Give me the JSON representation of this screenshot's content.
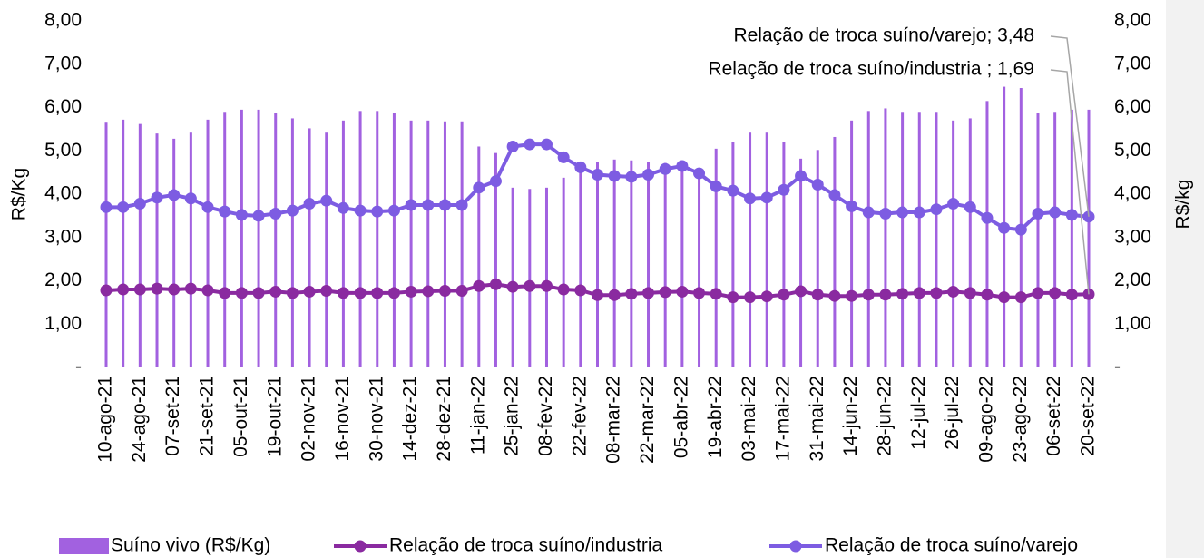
{
  "chart_data": {
    "type": "bar-line",
    "categories": [
      "10-ago-21",
      null,
      "24-ago-21",
      null,
      "07-set-21",
      null,
      "21-set-21",
      null,
      "05-out-21",
      null,
      "19-out-21",
      null,
      "02-nov-21",
      null,
      "16-nov-21",
      null,
      "30-nov-21",
      null,
      "14-dez-21",
      null,
      "28-dez-21",
      null,
      "11-jan-22",
      null,
      "25-jan-22",
      null,
      "08-fev-22",
      null,
      "22-fev-22",
      null,
      "08-mar-22",
      null,
      "22-mar-22",
      null,
      "05-abr-22",
      null,
      "19-abr-22",
      null,
      "03-mai-22",
      null,
      "17-mai-22",
      null,
      "31-mai-22",
      null,
      "14-jun-22",
      null,
      "28-jun-22",
      null,
      "12-jul-22",
      null,
      "26-jul-22",
      null,
      "09-ago-22",
      null,
      "23-ago-22",
      null,
      "06-set-22",
      null,
      "20-set-22"
    ],
    "series": [
      {
        "name": "Suíno vivo (R$/Kg)",
        "type": "bar",
        "color": "#a261e0",
        "values": [
          5.65,
          5.72,
          5.62,
          5.4,
          5.28,
          5.42,
          5.72,
          5.9,
          5.95,
          5.95,
          5.88,
          5.75,
          5.52,
          5.42,
          5.7,
          5.92,
          5.92,
          5.88,
          5.7,
          5.7,
          5.68,
          5.68,
          5.1,
          4.95,
          4.15,
          4.12,
          4.15,
          4.38,
          4.75,
          4.75,
          4.8,
          4.78,
          4.75,
          4.72,
          4.7,
          4.6,
          5.05,
          5.2,
          5.42,
          5.42,
          5.2,
          4.82,
          5.02,
          5.32,
          5.7,
          5.92,
          5.98,
          5.9,
          5.9,
          5.9,
          5.7,
          5.75,
          6.15,
          6.48,
          6.45,
          5.88,
          5.9,
          5.95,
          5.95
        ]
      },
      {
        "name": "Relação de troca suíno/industria",
        "type": "line",
        "axis": "y2",
        "color": "#8a2aa0",
        "values": [
          1.78,
          1.8,
          1.8,
          1.82,
          1.8,
          1.82,
          1.78,
          1.72,
          1.72,
          1.72,
          1.75,
          1.72,
          1.75,
          1.77,
          1.72,
          1.72,
          1.72,
          1.72,
          1.75,
          1.76,
          1.77,
          1.77,
          1.88,
          1.92,
          1.86,
          1.88,
          1.88,
          1.8,
          1.78,
          1.67,
          1.67,
          1.7,
          1.72,
          1.74,
          1.75,
          1.72,
          1.7,
          1.62,
          1.62,
          1.64,
          1.68,
          1.76,
          1.68,
          1.65,
          1.65,
          1.68,
          1.68,
          1.7,
          1.72,
          1.72,
          1.75,
          1.72,
          1.68,
          1.62,
          1.62,
          1.72,
          1.72,
          1.68,
          1.69
        ]
      },
      {
        "name": "Relação de troca suíno/varejo",
        "type": "line",
        "axis": "y2",
        "color": "#7d5ce2",
        "values": [
          3.7,
          3.7,
          3.78,
          3.92,
          3.98,
          3.9,
          3.7,
          3.6,
          3.52,
          3.5,
          3.55,
          3.62,
          3.78,
          3.85,
          3.68,
          3.62,
          3.6,
          3.62,
          3.75,
          3.75,
          3.75,
          3.75,
          4.15,
          4.3,
          5.1,
          5.15,
          5.15,
          4.85,
          4.62,
          4.45,
          4.42,
          4.4,
          4.45,
          4.58,
          4.65,
          4.48,
          4.18,
          4.08,
          3.9,
          3.92,
          4.1,
          4.42,
          4.22,
          3.98,
          3.72,
          3.58,
          3.55,
          3.58,
          3.58,
          3.65,
          3.78,
          3.7,
          3.45,
          3.22,
          3.18,
          3.55,
          3.58,
          3.52,
          3.48
        ]
      }
    ],
    "ylabel": "R$/Kg",
    "y2label": "R$/kg",
    "ylim": [
      0,
      8
    ],
    "y2lim": [
      0,
      8
    ],
    "yticks": [
      {
        "value": 0,
        "label": "-"
      },
      {
        "value": 1,
        "label": "1,00"
      },
      {
        "value": 2,
        "label": "2,00"
      },
      {
        "value": 3,
        "label": "3,00"
      },
      {
        "value": 4,
        "label": "4,00"
      },
      {
        "value": 5,
        "label": "5,00"
      },
      {
        "value": 6,
        "label": "6,00"
      },
      {
        "value": 7,
        "label": "7,00"
      },
      {
        "value": 8,
        "label": "8,00"
      }
    ],
    "y2ticks": [
      {
        "value": 0,
        "label": "-"
      },
      {
        "value": 1,
        "label": "1,00"
      },
      {
        "value": 2,
        "label": "2,00"
      },
      {
        "value": 3,
        "label": "3,00"
      },
      {
        "value": 4,
        "label": "4,00"
      },
      {
        "value": 5,
        "label": "5,00"
      },
      {
        "value": 6,
        "label": "6,00"
      },
      {
        "value": 7,
        "label": "7,00"
      },
      {
        "value": 8,
        "label": "8,00"
      }
    ],
    "annotations": [
      "Relação de troca suíno/varejo; 3,48",
      "Relação de troca suíno/industria ; 1,69"
    ],
    "legend": "bottom"
  }
}
